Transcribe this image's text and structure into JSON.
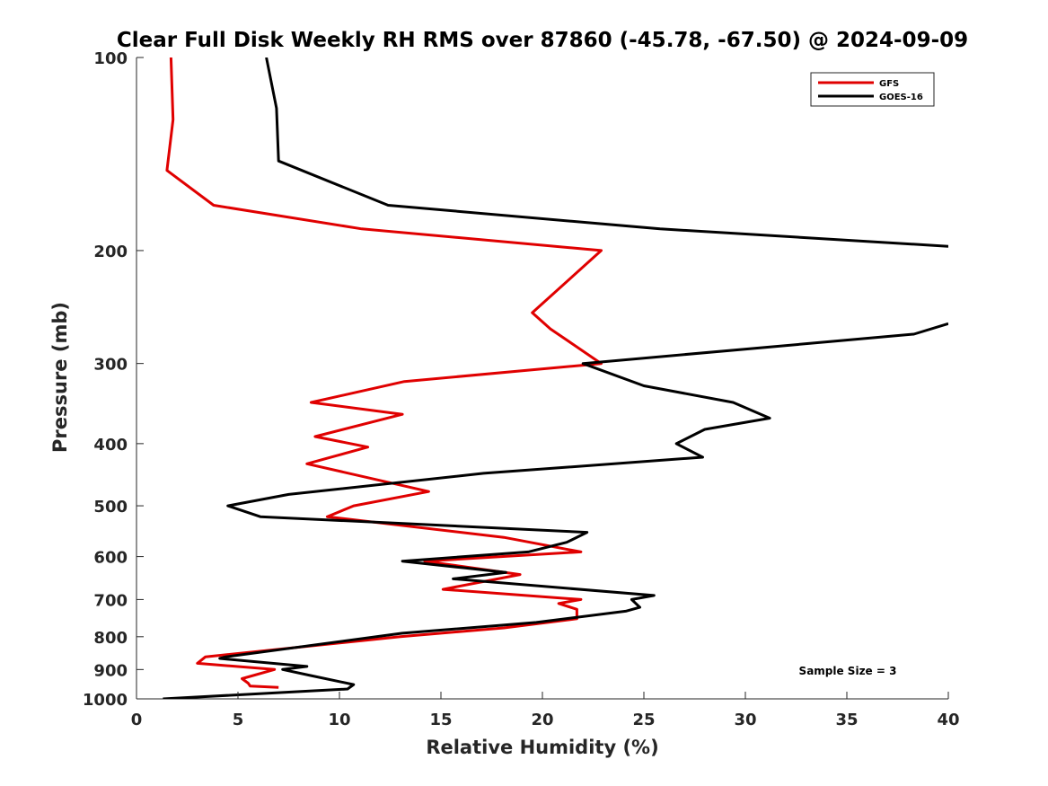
{
  "chart_data": {
    "type": "line",
    "title": "Clear Full Disk Weekly RH RMS over 87860 (-45.78, -67.50) @ 2024-09-09",
    "xlabel": "Relative Humidity (%)",
    "ylabel": "Pressure (mb)",
    "xlim": [
      0,
      40
    ],
    "ylim": [
      100,
      1000
    ],
    "y_scale": "log",
    "y_reversed": true,
    "xticks": [
      "0",
      "5",
      "10",
      "15",
      "20",
      "25",
      "30",
      "35",
      "40"
    ],
    "yticks": [
      "100",
      "200",
      "300",
      "400",
      "500",
      "600",
      "700",
      "800",
      "900",
      "1000"
    ],
    "grid": false,
    "legend_position": "top-right",
    "annotation": "Sample Size = 3",
    "series": [
      {
        "name": "GFS",
        "color": "#e00000",
        "points": [
          [
            1.7,
            100
          ],
          [
            1.8,
            125
          ],
          [
            1.5,
            150
          ],
          [
            3.8,
            170
          ],
          [
            11.1,
            185
          ],
          [
            22.9,
            200
          ],
          [
            19.5,
            250
          ],
          [
            20.4,
            265
          ],
          [
            22.9,
            300
          ],
          [
            13.2,
            320
          ],
          [
            8.6,
            345
          ],
          [
            13.1,
            360
          ],
          [
            8.8,
            390
          ],
          [
            11.4,
            405
          ],
          [
            8.4,
            430
          ],
          [
            14.4,
            475
          ],
          [
            10.7,
            500
          ],
          [
            9.4,
            520
          ],
          [
            18.1,
            560
          ],
          [
            21.9,
            590
          ],
          [
            14.2,
            610
          ],
          [
            18.9,
            640
          ],
          [
            15.1,
            675
          ],
          [
            21.9,
            700
          ],
          [
            20.8,
            710
          ],
          [
            21.7,
            725
          ],
          [
            21.7,
            750
          ],
          [
            18.1,
            775
          ],
          [
            13.0,
            800
          ],
          [
            3.4,
            860
          ],
          [
            3.0,
            880
          ],
          [
            6.8,
            900
          ],
          [
            5.2,
            930
          ],
          [
            5.5,
            945
          ],
          [
            5.6,
            955
          ],
          [
            7.0,
            960
          ]
        ]
      },
      {
        "name": "GOES-16",
        "color": "#000000",
        "points": [
          [
            6.4,
            100
          ],
          [
            6.9,
            120
          ],
          [
            7.0,
            145
          ],
          [
            12.4,
            170
          ],
          [
            25.8,
            185
          ],
          [
            40.0,
            197
          ],
          [
            null,
            250
          ],
          [
            40.0,
            260
          ],
          [
            38.3,
            270
          ],
          [
            22.0,
            300
          ],
          [
            25.0,
            325
          ],
          [
            29.4,
            345
          ],
          [
            31.2,
            365
          ],
          [
            28.0,
            380
          ],
          [
            26.6,
            400
          ],
          [
            27.9,
            420
          ],
          [
            17.1,
            445
          ],
          [
            7.5,
            480
          ],
          [
            4.5,
            500
          ],
          [
            6.1,
            520
          ],
          [
            22.2,
            550
          ],
          [
            21.2,
            570
          ],
          [
            19.3,
            590
          ],
          [
            13.1,
            610
          ],
          [
            16.2,
            625
          ],
          [
            18.2,
            635
          ],
          [
            15.6,
            650
          ],
          [
            25.5,
            690
          ],
          [
            24.4,
            700
          ],
          [
            24.8,
            720
          ],
          [
            24.1,
            730
          ],
          [
            19.7,
            760
          ],
          [
            13.1,
            790
          ],
          [
            4.4,
            860
          ],
          [
            4.1,
            865
          ],
          [
            8.4,
            890
          ],
          [
            7.2,
            900
          ],
          [
            8.6,
            920
          ],
          [
            10.7,
            950
          ],
          [
            10.4,
            965
          ],
          [
            1.3,
            1000
          ]
        ]
      }
    ]
  }
}
